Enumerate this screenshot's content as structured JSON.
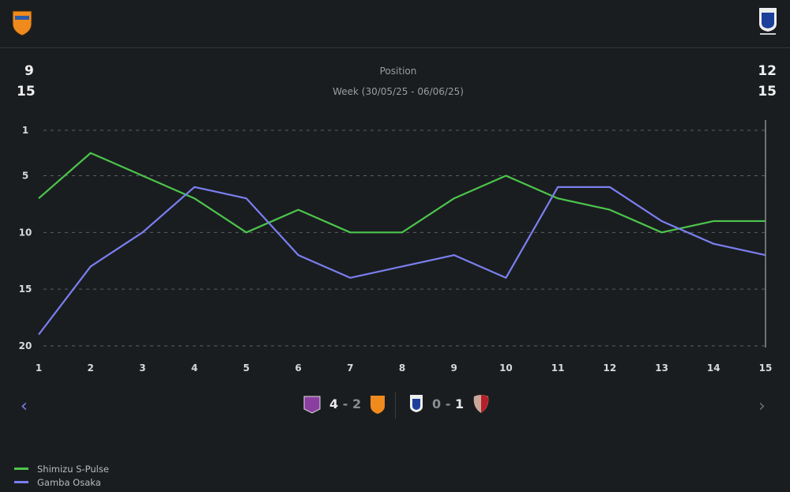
{
  "header": {
    "home_team_crest": "shimizu-s-pulse-crest",
    "away_team_crest": "gamba-osaka-crest"
  },
  "summary": {
    "title": "Position",
    "subtitle": "Week (30/05/25 - 06/06/25)",
    "home_position": "9",
    "home_week": "15",
    "away_position": "12",
    "away_week": "15"
  },
  "chart_data": {
    "type": "line",
    "title": "Position",
    "x": [
      1,
      2,
      3,
      4,
      5,
      6,
      7,
      8,
      9,
      10,
      11,
      12,
      13,
      14,
      15
    ],
    "x_tick_labels": [
      "1",
      "2",
      "3",
      "4",
      "5",
      "6",
      "7",
      "8",
      "9",
      "10",
      "11",
      "12",
      "13",
      "14",
      "15"
    ],
    "y_tick_labels": [
      "1",
      "5",
      "10",
      "15",
      "20"
    ],
    "y_ticks": [
      1,
      5,
      10,
      15,
      20
    ],
    "ylim": [
      1,
      20
    ],
    "y_inverted": true,
    "grid": "horizontal-dashed",
    "selected_week": 15,
    "legend_position": "bottom-left",
    "series": [
      {
        "name": "Shimizu S-Pulse",
        "color": "#4cc54c",
        "values": [
          7,
          3,
          5,
          7,
          10,
          8,
          10,
          10,
          7,
          5,
          7,
          8,
          10,
          9,
          9
        ]
      },
      {
        "name": "Gamba Osaka",
        "color": "#7b7ff0",
        "values": [
          19,
          13,
          10,
          6,
          7,
          12,
          14,
          13,
          12,
          14,
          6,
          6,
          9,
          11,
          12
        ]
      }
    ]
  },
  "matches": [
    {
      "home_score": "4",
      "sep": "-",
      "away_score": "2"
    },
    {
      "home_score": "0",
      "sep": "-",
      "away_score": "1"
    }
  ],
  "nav": {
    "prev": "‹",
    "next": "›"
  }
}
